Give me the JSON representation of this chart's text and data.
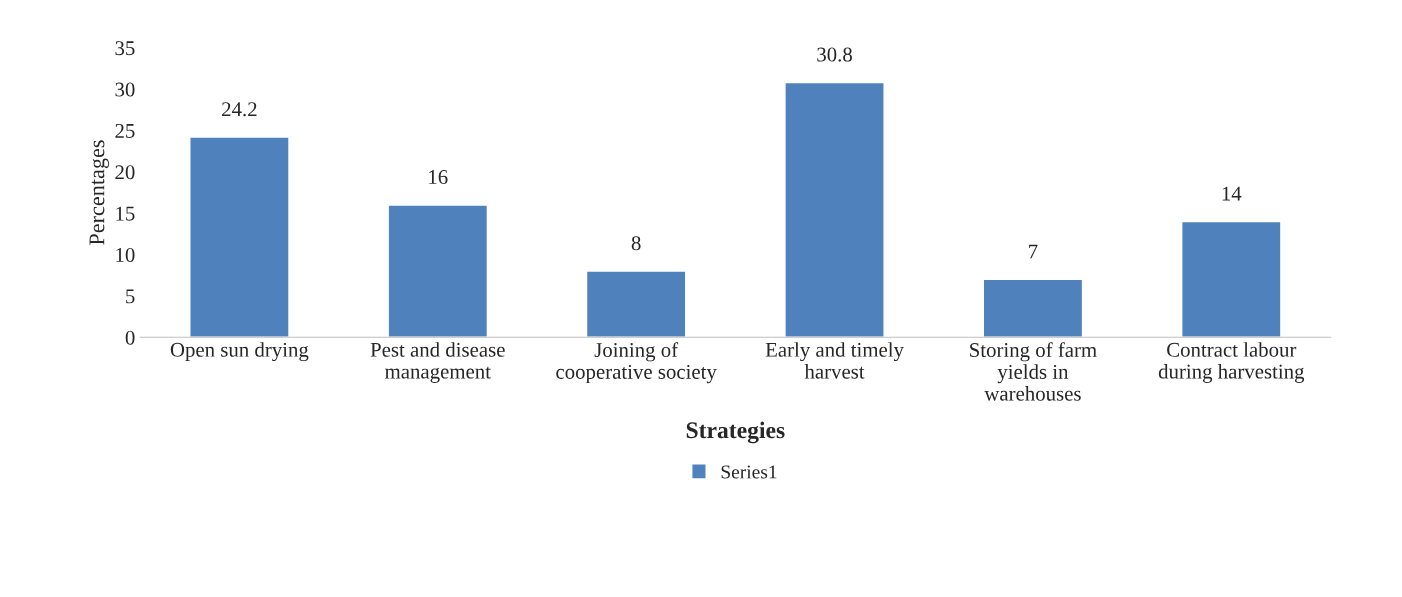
{
  "chart_data": {
    "type": "bar",
    "xlabel": "Strategies",
    "ylabel": "Percentages",
    "categories": [
      "Open sun drying",
      "Pest and disease\nmanagement",
      "Joining of\ncooperative society",
      "Early and timely\nharvest",
      "Storing of farm\nyields in\nwarehouses",
      "Contract labour\nduring harvesting"
    ],
    "series": [
      {
        "name": "Series1",
        "color": "#4f81bd",
        "values": [
          24.2,
          16,
          8,
          30.8,
          7,
          14
        ]
      }
    ],
    "ylim": [
      0,
      35
    ],
    "yticks": [
      0,
      5,
      10,
      15,
      20,
      25,
      30,
      35
    ],
    "data_labels": true,
    "grid": false,
    "legend": "bottom"
  }
}
